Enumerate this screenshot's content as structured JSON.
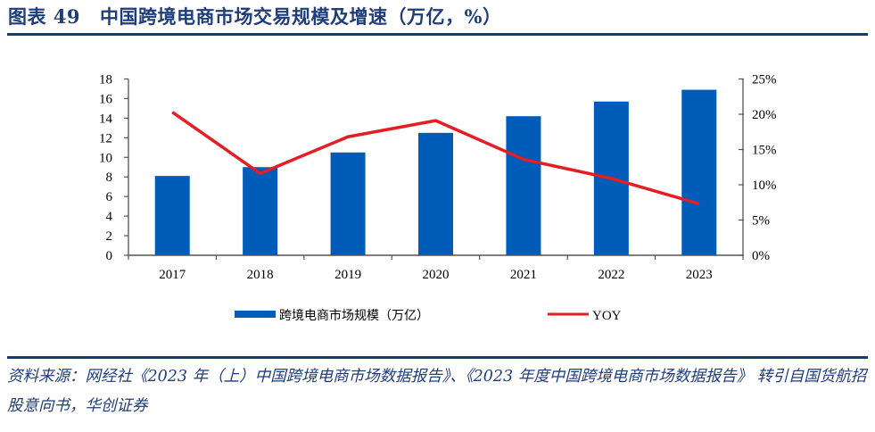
{
  "figure": {
    "label": "图表 49",
    "title": "中国跨境电商市场交易规模及增速（万亿，%）",
    "source": "资料来源：网经社《2023 年（上）中国跨境电商市场数据报告》、《2023 年度中国跨境电商市场数据报告》 转引自国货航招股意向书，华创证券"
  },
  "colors": {
    "bar": "#005cb9",
    "line": "#e31e24",
    "rule": "#103a78",
    "title": "#1f3d7a"
  },
  "chart_data": {
    "type": "bar",
    "title": "中国跨境电商市场交易规模及增速（万亿，%）",
    "xlabel": "",
    "categories": [
      "2017",
      "2018",
      "2019",
      "2020",
      "2021",
      "2022",
      "2023"
    ],
    "series": [
      {
        "name": "跨境电商市场规模（万亿）",
        "type": "bar",
        "axis": "left",
        "values": [
          8.1,
          9.0,
          10.5,
          12.5,
          14.2,
          15.7,
          16.9
        ]
      },
      {
        "name": "YOY",
        "type": "line",
        "axis": "right",
        "unit": "%",
        "values": [
          20.3,
          11.6,
          16.8,
          19.1,
          13.6,
          10.9,
          7.3
        ]
      }
    ],
    "y_left": {
      "ylim": [
        0,
        18
      ],
      "ticks": [
        0,
        2,
        4,
        6,
        8,
        10,
        12,
        14,
        16,
        18
      ],
      "tick_labels": [
        "0",
        "2",
        "4",
        "6",
        "8",
        "10",
        "12",
        "14",
        "16",
        "18"
      ]
    },
    "y_right": {
      "ylim": [
        0,
        25
      ],
      "ticks": [
        0,
        5,
        10,
        15,
        20,
        25
      ],
      "tick_labels": [
        "0%",
        "5%",
        "10%",
        "15%",
        "20%",
        "25%"
      ]
    },
    "grid": false,
    "legend": {
      "placement": "bottom",
      "entries": [
        "跨境电商市场规模（万亿）",
        "YOY"
      ]
    }
  }
}
